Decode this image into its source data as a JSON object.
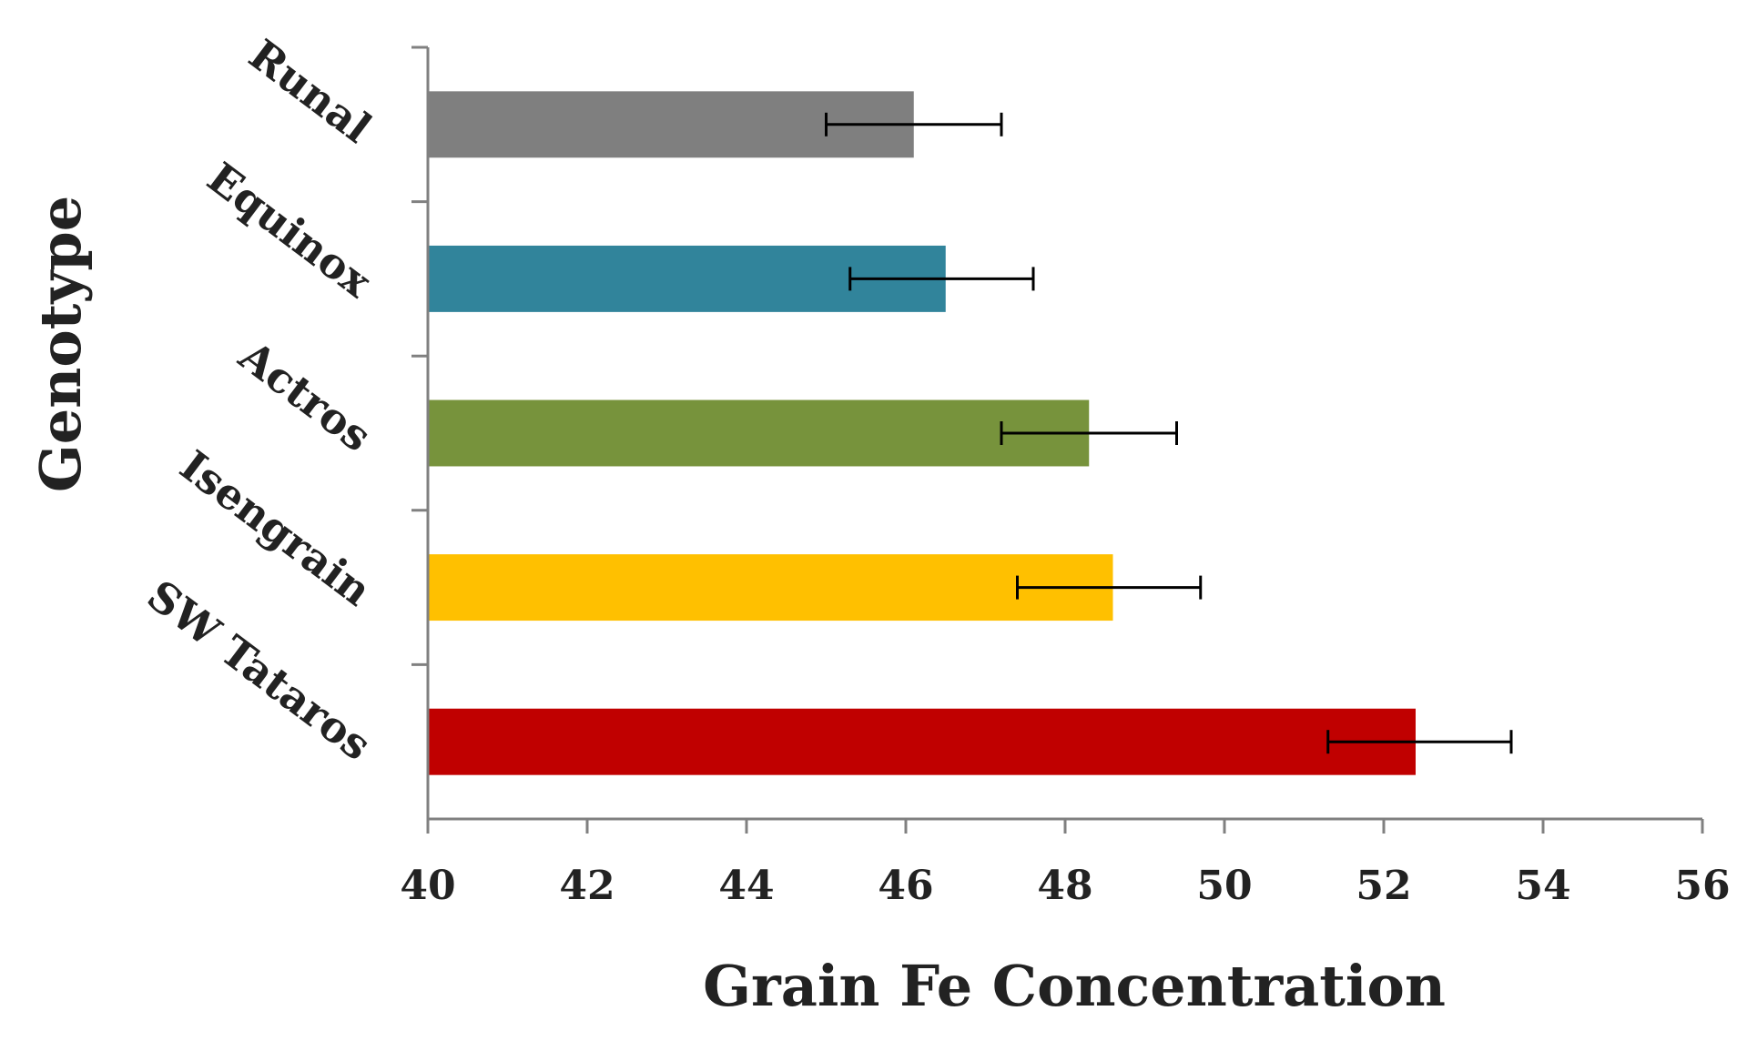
{
  "chart_data": {
    "type": "bar",
    "orientation": "horizontal",
    "title": "",
    "xlabel": "Grain Fe Concentration",
    "ylabel": "Genotype",
    "xlim": [
      40,
      56
    ],
    "xticks": [
      40,
      42,
      44,
      46,
      48,
      50,
      52,
      54,
      56
    ],
    "xtick_labels": [
      "40",
      "42",
      "44",
      "46",
      "48",
      "50",
      "52",
      "54",
      "56"
    ],
    "grid": false,
    "categories": [
      "Runal",
      "Equinox",
      "Actros",
      "Isengrain",
      "SW Tataros"
    ],
    "values": [
      46.1,
      46.5,
      48.3,
      48.6,
      52.4
    ],
    "error_low": [
      45.0,
      45.3,
      47.2,
      47.4,
      51.3
    ],
    "error_high": [
      47.2,
      47.6,
      49.4,
      49.7,
      53.6
    ],
    "colors": [
      "#7f7f7f",
      "#31849b",
      "#77933c",
      "#ffc000",
      "#c00000"
    ]
  }
}
